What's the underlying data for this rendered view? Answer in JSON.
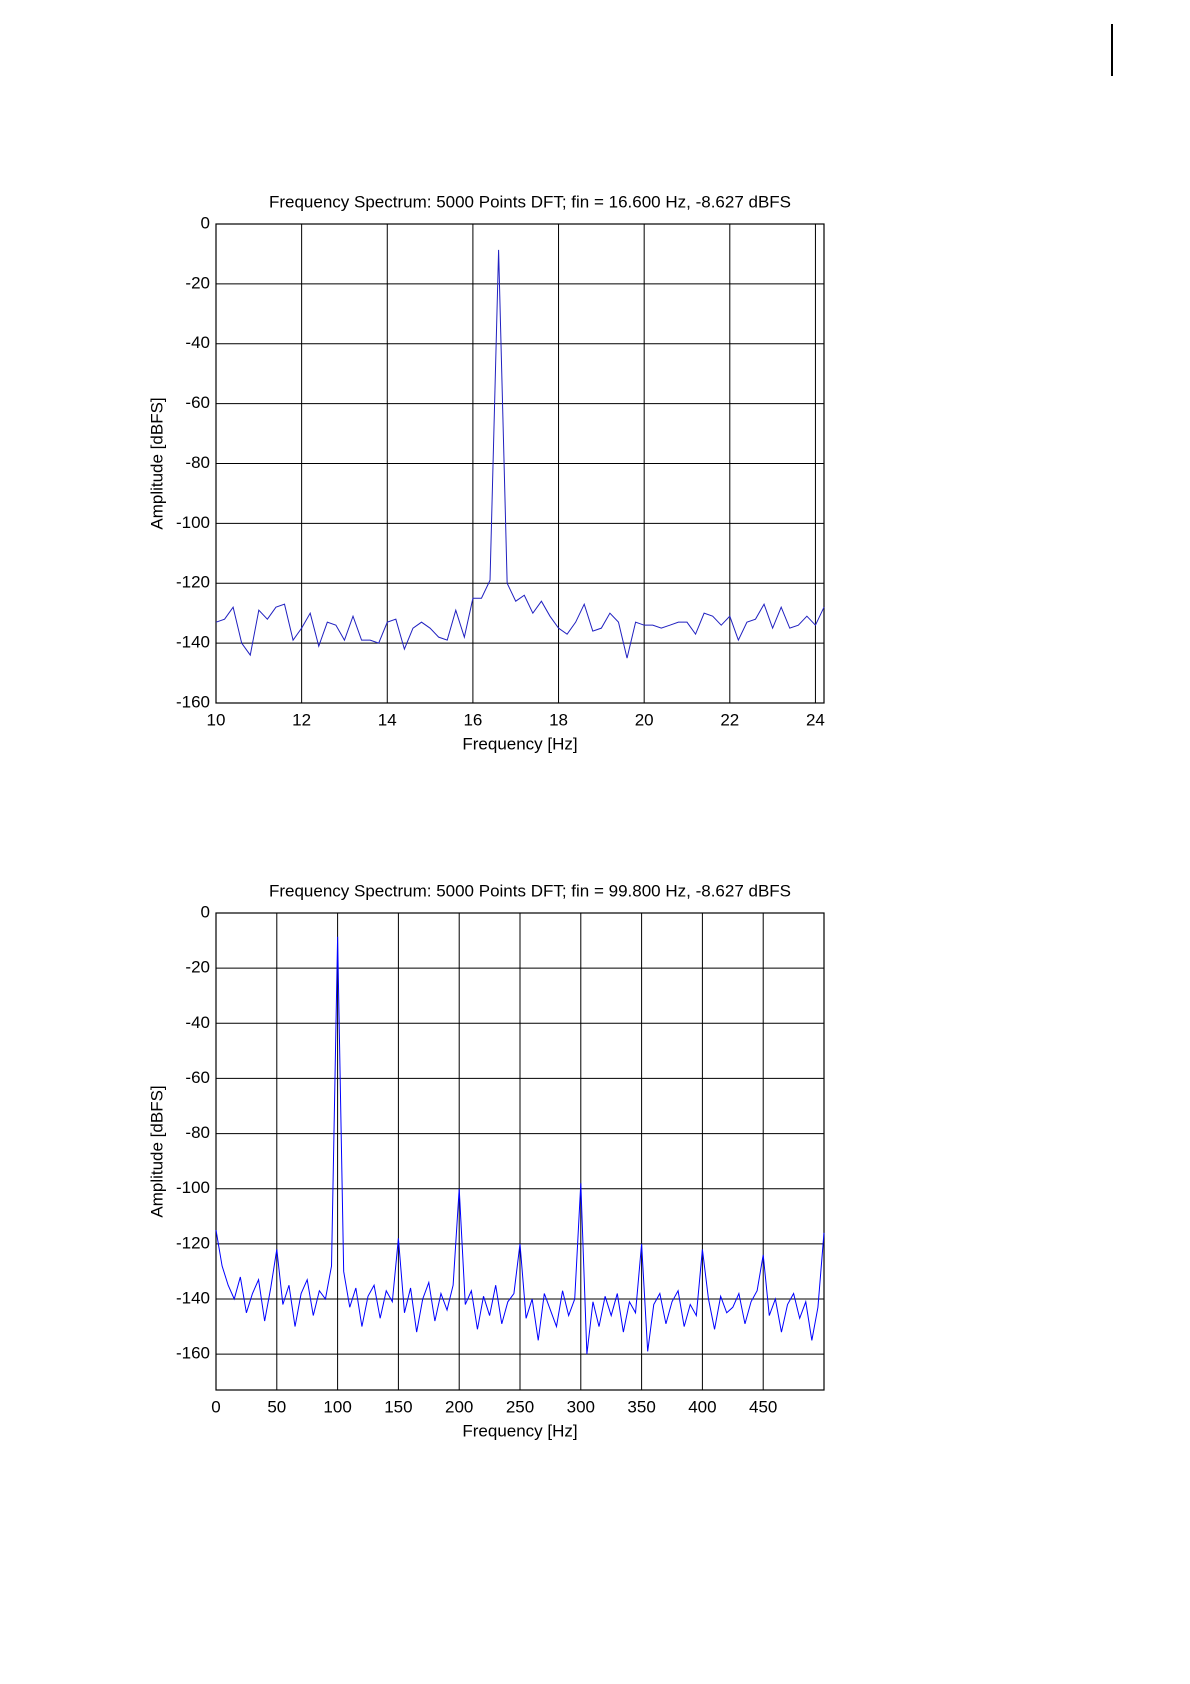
{
  "chart_data": [
    {
      "type": "line",
      "title": "Frequency Spectrum: 5000 Points DFT; fin = 16.600 Hz, -8.627 dBFS",
      "xlabel": "Frequency [Hz]",
      "ylabel": "Amplitude [dBFS]",
      "xlim": [
        10,
        24.2
      ],
      "xticks": [
        10,
        12,
        14,
        16,
        18,
        20,
        22,
        24
      ],
      "ylim": [
        -160,
        0
      ],
      "yticks": [
        0,
        -20,
        -40,
        -60,
        -80,
        -100,
        -120,
        -140,
        -160
      ],
      "grid": true,
      "x": [
        10,
        10.2,
        10.4,
        10.6,
        10.8,
        11,
        11.2,
        11.4,
        11.6,
        11.8,
        12,
        12.2,
        12.4,
        12.6,
        12.8,
        13,
        13.2,
        13.4,
        13.6,
        13.8,
        14,
        14.2,
        14.4,
        14.6,
        14.8,
        15,
        15.2,
        15.4,
        15.6,
        15.8,
        16,
        16.2,
        16.4,
        16.6,
        16.8,
        17,
        17.2,
        17.4,
        17.6,
        17.8,
        18,
        18.2,
        18.4,
        18.6,
        18.8,
        19,
        19.2,
        19.4,
        19.6,
        19.8,
        20,
        20.2,
        20.4,
        20.6,
        20.8,
        21,
        21.2,
        21.4,
        21.6,
        21.8,
        22,
        22.2,
        22.4,
        22.6,
        22.8,
        23,
        23.2,
        23.4,
        23.6,
        23.8,
        24,
        24.2
      ],
      "series": [
        {
          "color": "#2020c0",
          "values": [
            -133,
            -132,
            -128,
            -140,
            -144,
            -129,
            -132,
            -128,
            -127,
            -139,
            -135,
            -130,
            -141,
            -133,
            -134,
            -139,
            -131,
            -139,
            -139,
            -140,
            -133,
            -132,
            -142,
            -135,
            -133,
            -135,
            -138,
            -139,
            -129,
            -138,
            -125,
            -125,
            -119,
            -8.627,
            -120,
            -126,
            -124,
            -130,
            -126,
            -131,
            -135,
            -137,
            -133,
            -127,
            -136,
            -135,
            -130,
            -133,
            -145,
            -133,
            -134,
            -134,
            -135,
            -134,
            -133,
            -133,
            -137,
            -130,
            -131,
            -134,
            -131,
            -139,
            -133,
            -132,
            -127,
            -135,
            -128,
            -135,
            -134,
            -131,
            -134,
            -128
          ]
        }
      ]
    },
    {
      "type": "line",
      "title": "Frequency Spectrum: 5000 Points DFT; fin = 99.800 Hz, -8.627 dBFS",
      "xlabel": "Frequency [Hz]",
      "ylabel": "Amplitude [dBFS]",
      "xlim": [
        0,
        500
      ],
      "xticks": [
        0,
        50,
        100,
        150,
        200,
        250,
        300,
        350,
        400,
        450
      ],
      "ylim": [
        -173,
        0
      ],
      "yticks": [
        0,
        -20,
        -40,
        -60,
        -80,
        -100,
        -120,
        -140,
        -160
      ],
      "grid": true,
      "x": [
        0,
        5,
        10,
        15,
        20,
        25,
        30,
        35,
        40,
        45,
        50,
        55,
        60,
        65,
        70,
        75,
        80,
        85,
        90,
        95,
        100,
        105,
        110,
        115,
        120,
        125,
        130,
        135,
        140,
        145,
        150,
        155,
        160,
        165,
        170,
        175,
        180,
        185,
        190,
        195,
        200,
        205,
        210,
        215,
        220,
        225,
        230,
        235,
        240,
        245,
        250,
        255,
        260,
        265,
        270,
        275,
        280,
        285,
        290,
        295,
        300,
        305,
        310,
        315,
        320,
        325,
        330,
        335,
        340,
        345,
        350,
        355,
        360,
        365,
        370,
        375,
        380,
        385,
        390,
        395,
        400,
        405,
        410,
        415,
        420,
        425,
        430,
        435,
        440,
        445,
        450,
        455,
        460,
        465,
        470,
        475,
        480,
        485,
        490,
        495,
        500
      ],
      "series": [
        {
          "color": "#0000ff",
          "values": [
            -115,
            -128,
            -135,
            -140,
            -132,
            -145,
            -138,
            -133,
            -148,
            -136,
            -122,
            -142,
            -135,
            -150,
            -138,
            -133,
            -146,
            -137,
            -140,
            -128,
            -8.627,
            -130,
            -143,
            -136,
            -150,
            -139,
            -135,
            -147,
            -137,
            -141,
            -118,
            -145,
            -136,
            -152,
            -140,
            -134,
            -148,
            -138,
            -144,
            -135,
            -100,
            -142,
            -137,
            -151,
            -139,
            -146,
            -135,
            -149,
            -141,
            -138,
            -120,
            -147,
            -140,
            -155,
            -138,
            -144,
            -150,
            -137,
            -146,
            -140,
            -98,
            -160,
            -141,
            -150,
            -139,
            -146,
            -138,
            -152,
            -141,
            -145,
            -120,
            -159,
            -142,
            -138,
            -149,
            -141,
            -137,
            -150,
            -142,
            -146,
            -122,
            -140,
            -151,
            -139,
            -145,
            -143,
            -138,
            -149,
            -141,
            -137,
            -124,
            -146,
            -140,
            -152,
            -142,
            -138,
            -147,
            -141,
            -155,
            -143,
            -116
          ]
        }
      ]
    }
  ]
}
